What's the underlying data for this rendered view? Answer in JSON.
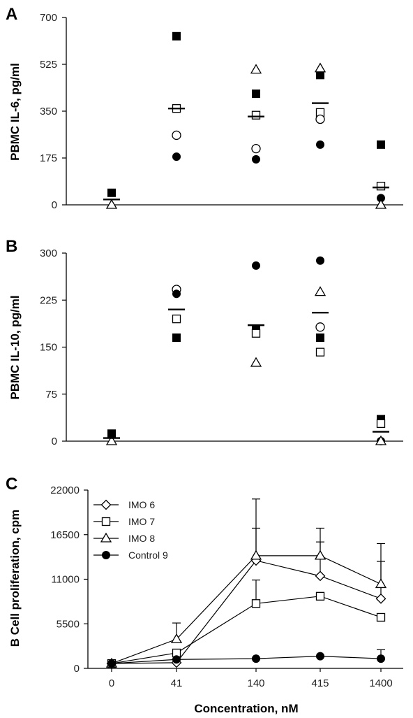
{
  "chart_data": [
    {
      "panel": "A",
      "type": "scatter",
      "ylabel": "PBMC IL-6, pg/ml",
      "yticks": [
        "700",
        "525",
        "350",
        "175",
        "0"
      ],
      "ylim": [
        0,
        700
      ],
      "categories": [
        "0",
        "41",
        "140",
        "415",
        "1400"
      ],
      "series": [
        {
          "marker": "filled-square",
          "values": [
            45,
            630,
            415,
            485,
            225
          ]
        },
        {
          "marker": "open-square",
          "values": [
            null,
            360,
            335,
            345,
            70
          ]
        },
        {
          "marker": "open-circle",
          "values": [
            null,
            260,
            210,
            320,
            null
          ]
        },
        {
          "marker": "filled-circle",
          "values": [
            null,
            180,
            170,
            225,
            25
          ]
        },
        {
          "marker": "open-triangle",
          "values": [
            0,
            null,
            505,
            510,
            0
          ]
        }
      ],
      "means": [
        20,
        360,
        330,
        380,
        65
      ]
    },
    {
      "panel": "B",
      "type": "scatter",
      "ylabel": "PBMC IL-10, pg/ml",
      "yticks": [
        "300",
        "225",
        "150",
        "75",
        "0"
      ],
      "ylim": [
        0,
        300
      ],
      "categories": [
        "0",
        "41",
        "140",
        "415",
        "1400"
      ],
      "series": [
        {
          "marker": "filled-square",
          "values": [
            12,
            165,
            178,
            165,
            35
          ]
        },
        {
          "marker": "open-square",
          "values": [
            null,
            195,
            172,
            142,
            28
          ]
        },
        {
          "marker": "open-circle",
          "values": [
            null,
            242,
            null,
            182,
            null
          ]
        },
        {
          "marker": "filled-circle",
          "values": [
            null,
            235,
            280,
            288,
            0
          ]
        },
        {
          "marker": "open-triangle",
          "values": [
            0,
            null,
            125,
            238,
            0
          ]
        }
      ],
      "means": [
        5,
        210,
        185,
        205,
        15
      ]
    },
    {
      "panel": "C",
      "type": "line",
      "ylabel": "B Cell proliferation, cpm",
      "xlabel": "Concentration, nM",
      "yticks": [
        "22000",
        "16500",
        "11000",
        "5500",
        "0"
      ],
      "ylim": [
        0,
        22000
      ],
      "categories": [
        "0",
        "41",
        "140",
        "415",
        "1400"
      ],
      "legend_position": "top-left",
      "series": [
        {
          "name": "IMO 6",
          "marker": "open-diamond",
          "values": [
            600,
            700,
            13300,
            11400,
            8600
          ],
          "err": [
            0,
            0,
            4000,
            4200,
            4600
          ]
        },
        {
          "name": "IMO 7",
          "marker": "open-square",
          "values": [
            600,
            1900,
            8000,
            8900,
            6300
          ],
          "err": [
            0,
            0,
            2900,
            0,
            0
          ]
        },
        {
          "name": "IMO 8",
          "marker": "open-triangle",
          "values": [
            600,
            3600,
            13900,
            13900,
            10400
          ],
          "err": [
            0,
            2000,
            7000,
            3400,
            5000
          ]
        },
        {
          "name": "Control 9",
          "marker": "filled-circle",
          "values": [
            600,
            1100,
            1200,
            1500,
            1200
          ],
          "err": [
            0,
            0,
            0,
            0,
            1100
          ]
        }
      ]
    }
  ]
}
